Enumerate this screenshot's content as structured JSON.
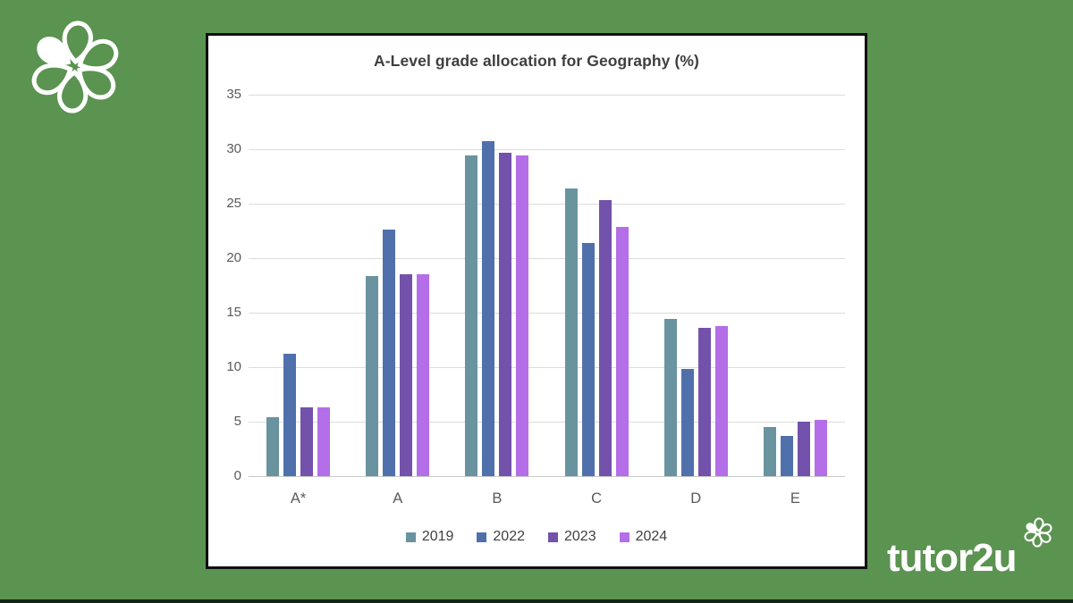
{
  "background": {
    "green": "#5b9351",
    "bottom_strip": "#132413"
  },
  "panel": {
    "bg": "#ffffff",
    "border": "#0f0f0f"
  },
  "brand": {
    "wordmark_prefix": "tutor",
    "wordmark_suffix": "2u",
    "color": "#ffffff"
  },
  "colors": {
    "grid": "#dcdcdc",
    "axis": "#c9c9c9",
    "tick_text": "#595959",
    "title_text": "#3f3f3f",
    "legend_text": "#404040"
  },
  "chart_data": {
    "type": "bar",
    "title": "A-Level grade allocation for Geography (%)",
    "xlabel": "",
    "ylabel": "",
    "categories": [
      "A*",
      "A",
      "B",
      "C",
      "D",
      "E"
    ],
    "series": [
      {
        "name": "2019",
        "color": "#6a93a0",
        "values": [
          5.4,
          18.4,
          29.4,
          26.4,
          14.4,
          4.5
        ]
      },
      {
        "name": "2022",
        "color": "#5070ac",
        "values": [
          11.2,
          22.6,
          30.7,
          21.4,
          9.8,
          3.7
        ]
      },
      {
        "name": "2023",
        "color": "#7352ab",
        "values": [
          6.3,
          18.5,
          29.7,
          25.3,
          13.6,
          5.0
        ]
      },
      {
        "name": "2024",
        "color": "#b46ee8",
        "values": [
          6.3,
          18.5,
          29.4,
          22.9,
          13.8,
          5.2
        ]
      }
    ],
    "ylim": [
      0,
      35
    ],
    "yticks": [
      0,
      5,
      10,
      15,
      20,
      25,
      30,
      35
    ],
    "grid": true,
    "legend_position": "bottom"
  }
}
